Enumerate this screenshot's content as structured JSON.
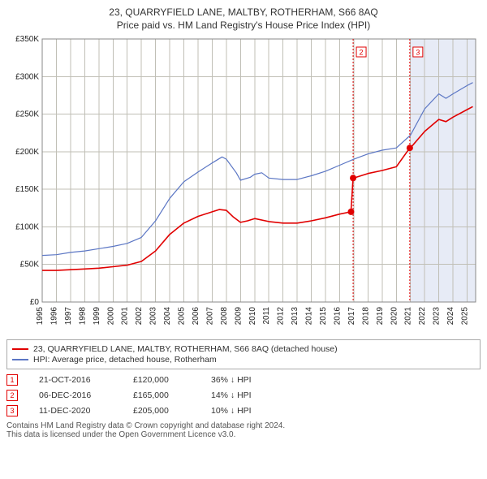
{
  "title": "23, QUARRYFIELD LANE, MALTBY, ROTHERHAM, S66 8AQ",
  "subtitle": "Price paid vs. HM Land Registry's House Price Index (HPI)",
  "chart": {
    "type": "line",
    "background_color": "#ffffff",
    "grid_color": "#c0bfb6",
    "plot_border_color": "#888888",
    "shaded_region": {
      "from_year": 2021.0,
      "to_year": 2025.6,
      "color": "#5b76c4"
    },
    "x": {
      "min": 1995,
      "max": 2025.6,
      "ticks": [
        1995,
        1996,
        1997,
        1998,
        1999,
        2000,
        2001,
        2002,
        2003,
        2004,
        2005,
        2006,
        2007,
        2008,
        2009,
        2010,
        2011,
        2012,
        2013,
        2014,
        2015,
        2016,
        2017,
        2018,
        2019,
        2020,
        2021,
        2022,
        2023,
        2024,
        2025
      ]
    },
    "y": {
      "min": 0,
      "max": 350000,
      "ticks": [
        0,
        50000,
        100000,
        150000,
        200000,
        250000,
        300000,
        350000
      ],
      "tick_labels": [
        "£0",
        "£50K",
        "£100K",
        "£150K",
        "£200K",
        "£250K",
        "£300K",
        "£350K"
      ]
    },
    "series": [
      {
        "name": "23, QUARRYFIELD LANE, MALTBY, ROTHERHAM, S66 8AQ (detached house)",
        "color": "#e10000",
        "width": 1.6,
        "points": [
          [
            1995,
            42000
          ],
          [
            1996,
            42000
          ],
          [
            1997,
            43000
          ],
          [
            1998,
            44000
          ],
          [
            1999,
            45000
          ],
          [
            2000,
            47000
          ],
          [
            2001,
            49000
          ],
          [
            2002,
            54000
          ],
          [
            2003,
            68000
          ],
          [
            2004,
            90000
          ],
          [
            2005,
            105000
          ],
          [
            2006,
            114000
          ],
          [
            2007,
            120000
          ],
          [
            2007.5,
            123000
          ],
          [
            2008,
            122000
          ],
          [
            2008.5,
            113000
          ],
          [
            2009,
            106000
          ],
          [
            2009.5,
            108000
          ],
          [
            2010,
            111000
          ],
          [
            2011,
            107000
          ],
          [
            2012,
            105000
          ],
          [
            2013,
            105000
          ],
          [
            2014,
            108000
          ],
          [
            2015,
            112000
          ],
          [
            2016,
            117000
          ],
          [
            2016.8,
            120000
          ],
          [
            2016.95,
            165000
          ],
          [
            2017,
            165000
          ],
          [
            2018,
            171000
          ],
          [
            2019,
            175000
          ],
          [
            2020,
            180000
          ],
          [
            2020.95,
            205000
          ],
          [
            2021,
            205000
          ],
          [
            2022,
            227000
          ],
          [
            2023,
            243000
          ],
          [
            2023.5,
            240000
          ],
          [
            2024,
            246000
          ],
          [
            2025,
            256000
          ],
          [
            2025.4,
            260000
          ]
        ]
      },
      {
        "name": "HPI: Average price, detached house, Rotherham",
        "color": "#5b76c4",
        "width": 1.2,
        "points": [
          [
            1995,
            62000
          ],
          [
            1996,
            63000
          ],
          [
            1997,
            66000
          ],
          [
            1998,
            68000
          ],
          [
            1999,
            71000
          ],
          [
            2000,
            74000
          ],
          [
            2001,
            78000
          ],
          [
            2002,
            86000
          ],
          [
            2003,
            108000
          ],
          [
            2004,
            138000
          ],
          [
            2005,
            160000
          ],
          [
            2006,
            173000
          ],
          [
            2007,
            185000
          ],
          [
            2007.7,
            193000
          ],
          [
            2008,
            190000
          ],
          [
            2008.7,
            172000
          ],
          [
            2009,
            162000
          ],
          [
            2009.7,
            166000
          ],
          [
            2010,
            170000
          ],
          [
            2010.5,
            172000
          ],
          [
            2011,
            165000
          ],
          [
            2012,
            163000
          ],
          [
            2013,
            163000
          ],
          [
            2014,
            168000
          ],
          [
            2015,
            174000
          ],
          [
            2016,
            182000
          ],
          [
            2017,
            190000
          ],
          [
            2018,
            197000
          ],
          [
            2019,
            202000
          ],
          [
            2020,
            205000
          ],
          [
            2021,
            222000
          ],
          [
            2022,
            257000
          ],
          [
            2023,
            277000
          ],
          [
            2023.5,
            271000
          ],
          [
            2024,
            277000
          ],
          [
            2025,
            288000
          ],
          [
            2025.4,
            292000
          ]
        ]
      }
    ],
    "event_markers": [
      {
        "id": "1",
        "year": 2016.8,
        "price": 120000,
        "color": "#e10000"
      },
      {
        "id": "2",
        "year": 2016.95,
        "price": 165000,
        "color": "#e10000"
      },
      {
        "id": "3",
        "year": 2020.95,
        "price": 205000,
        "color": "#e10000"
      }
    ],
    "event_vlines": [
      {
        "id": "2",
        "year": 2016.95,
        "color": "#e10000"
      },
      {
        "id": "3",
        "year": 2020.95,
        "color": "#e10000"
      }
    ]
  },
  "legend": {
    "items": [
      {
        "color": "#e10000",
        "label": "23, QUARRYFIELD LANE, MALTBY, ROTHERHAM, S66 8AQ (detached house)"
      },
      {
        "color": "#5b76c4",
        "label": "HPI: Average price, detached house, Rotherham"
      }
    ]
  },
  "transactions": {
    "rows": [
      {
        "id": "1",
        "color": "#e10000",
        "date": "21-OCT-2016",
        "price": "£120,000",
        "delta": "36% ↓ HPI"
      },
      {
        "id": "2",
        "color": "#e10000",
        "date": "06-DEC-2016",
        "price": "£165,000",
        "delta": "14% ↓ HPI"
      },
      {
        "id": "3",
        "color": "#e10000",
        "date": "11-DEC-2020",
        "price": "£205,000",
        "delta": "10% ↓ HPI"
      }
    ]
  },
  "attribution": {
    "line1": "Contains HM Land Registry data © Crown copyright and database right 2024.",
    "line2": "This data is licensed under the Open Government Licence v3.0."
  }
}
